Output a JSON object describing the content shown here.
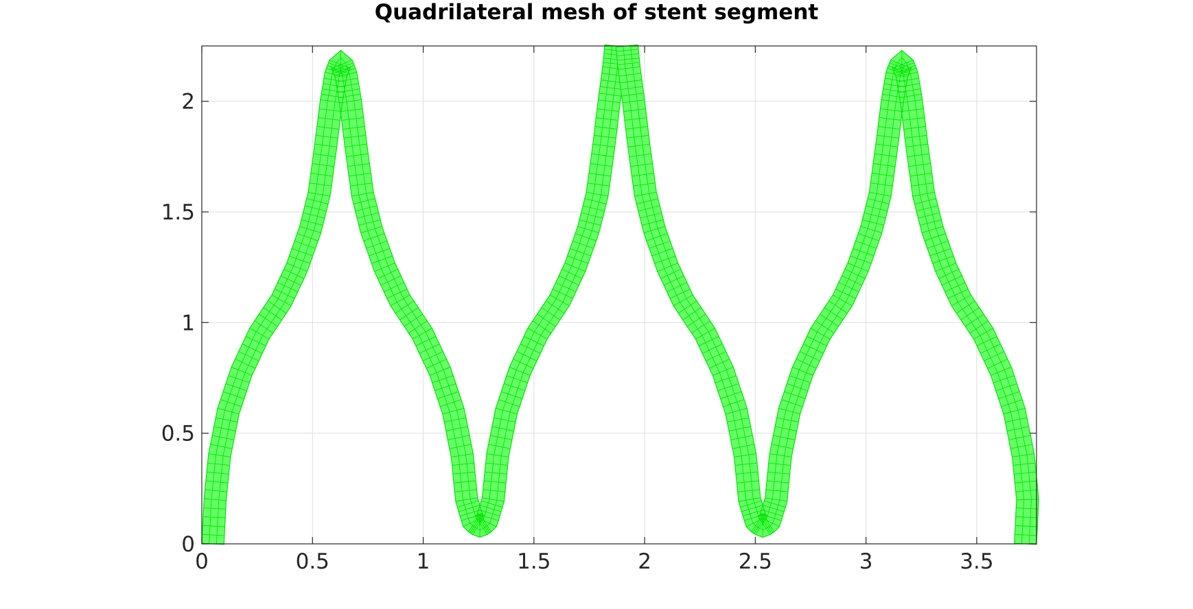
{
  "chart_data": {
    "type": "mesh",
    "title": "Quadrilateral mesh of stent segment",
    "xlabel": "",
    "ylabel": "",
    "xlim": [
      0,
      3.77
    ],
    "ylim": [
      0,
      2.25
    ],
    "x_ticks": [
      0,
      0.5,
      1,
      1.5,
      2,
      2.5,
      3,
      3.5
    ],
    "x_tick_labels": [
      "0",
      "0.5",
      "1",
      "1.5",
      "2",
      "2.5",
      "3",
      "3.5"
    ],
    "y_ticks": [
      0,
      0.5,
      1,
      1.5,
      2
    ],
    "y_tick_labels": [
      "0",
      "0.5",
      "1",
      "1.5",
      "2"
    ],
    "grid": true,
    "colors": {
      "mesh_fill": "#66ff66",
      "mesh_edge": "#00e600",
      "frame": "#262626",
      "grid": "#dedede"
    },
    "strut_width": 0.1,
    "series": [
      {
        "centerline": [
          [
            0.05,
            0.0
          ],
          [
            0.06,
            0.2
          ],
          [
            0.08,
            0.4
          ],
          [
            0.12,
            0.6
          ],
          [
            0.18,
            0.78
          ],
          [
            0.26,
            0.95
          ],
          [
            0.36,
            1.1
          ],
          [
            0.43,
            1.25
          ],
          [
            0.49,
            1.42
          ],
          [
            0.53,
            1.58
          ],
          [
            0.56,
            1.8
          ],
          [
            0.585,
            2.0
          ],
          [
            0.605,
            2.12
          ],
          [
            0.628,
            2.18
          ],
          [
            0.651,
            2.12
          ],
          [
            0.671,
            2.0
          ],
          [
            0.696,
            1.8
          ],
          [
            0.726,
            1.58
          ],
          [
            0.766,
            1.42
          ],
          [
            0.826,
            1.25
          ],
          [
            0.896,
            1.1
          ],
          [
            0.996,
            0.95
          ],
          [
            1.076,
            0.78
          ],
          [
            1.136,
            0.6
          ],
          [
            1.176,
            0.4
          ],
          [
            1.196,
            0.2
          ],
          [
            1.226,
            0.1
          ],
          [
            1.256,
            0.08
          ],
          [
            1.286,
            0.1
          ],
          [
            1.316,
            0.2
          ],
          [
            1.336,
            0.4
          ],
          [
            1.376,
            0.6
          ],
          [
            1.436,
            0.78
          ],
          [
            1.516,
            0.95
          ],
          [
            1.616,
            1.1
          ],
          [
            1.686,
            1.25
          ],
          [
            1.746,
            1.42
          ],
          [
            1.786,
            1.58
          ],
          [
            1.816,
            1.8
          ],
          [
            1.84,
            2.0
          ],
          [
            1.86,
            2.15
          ],
          [
            1.87,
            2.25
          ]
        ]
      },
      {
        "centerline": [
          [
            1.92,
            2.25
          ],
          [
            1.93,
            2.15
          ],
          [
            1.95,
            2.0
          ],
          [
            1.974,
            1.8
          ],
          [
            2.004,
            1.58
          ],
          [
            2.044,
            1.42
          ],
          [
            2.104,
            1.25
          ],
          [
            2.174,
            1.1
          ],
          [
            2.274,
            0.95
          ],
          [
            2.354,
            0.78
          ],
          [
            2.414,
            0.6
          ],
          [
            2.454,
            0.4
          ],
          [
            2.474,
            0.2
          ],
          [
            2.504,
            0.1
          ],
          [
            2.534,
            0.08
          ],
          [
            2.564,
            0.1
          ],
          [
            2.594,
            0.2
          ],
          [
            2.614,
            0.4
          ],
          [
            2.654,
            0.6
          ],
          [
            2.714,
            0.78
          ],
          [
            2.794,
            0.95
          ],
          [
            2.894,
            1.1
          ],
          [
            2.964,
            1.25
          ],
          [
            3.024,
            1.42
          ],
          [
            3.064,
            1.58
          ],
          [
            3.094,
            1.8
          ],
          [
            3.119,
            2.0
          ],
          [
            3.139,
            2.12
          ],
          [
            3.162,
            2.18
          ],
          [
            3.185,
            2.12
          ],
          [
            3.205,
            2.0
          ],
          [
            3.23,
            1.8
          ],
          [
            3.26,
            1.58
          ],
          [
            3.3,
            1.42
          ],
          [
            3.36,
            1.25
          ],
          [
            3.43,
            1.1
          ],
          [
            3.53,
            0.95
          ],
          [
            3.61,
            0.78
          ],
          [
            3.67,
            0.6
          ],
          [
            3.71,
            0.4
          ],
          [
            3.73,
            0.2
          ],
          [
            3.72,
            0.0
          ]
        ]
      }
    ]
  }
}
